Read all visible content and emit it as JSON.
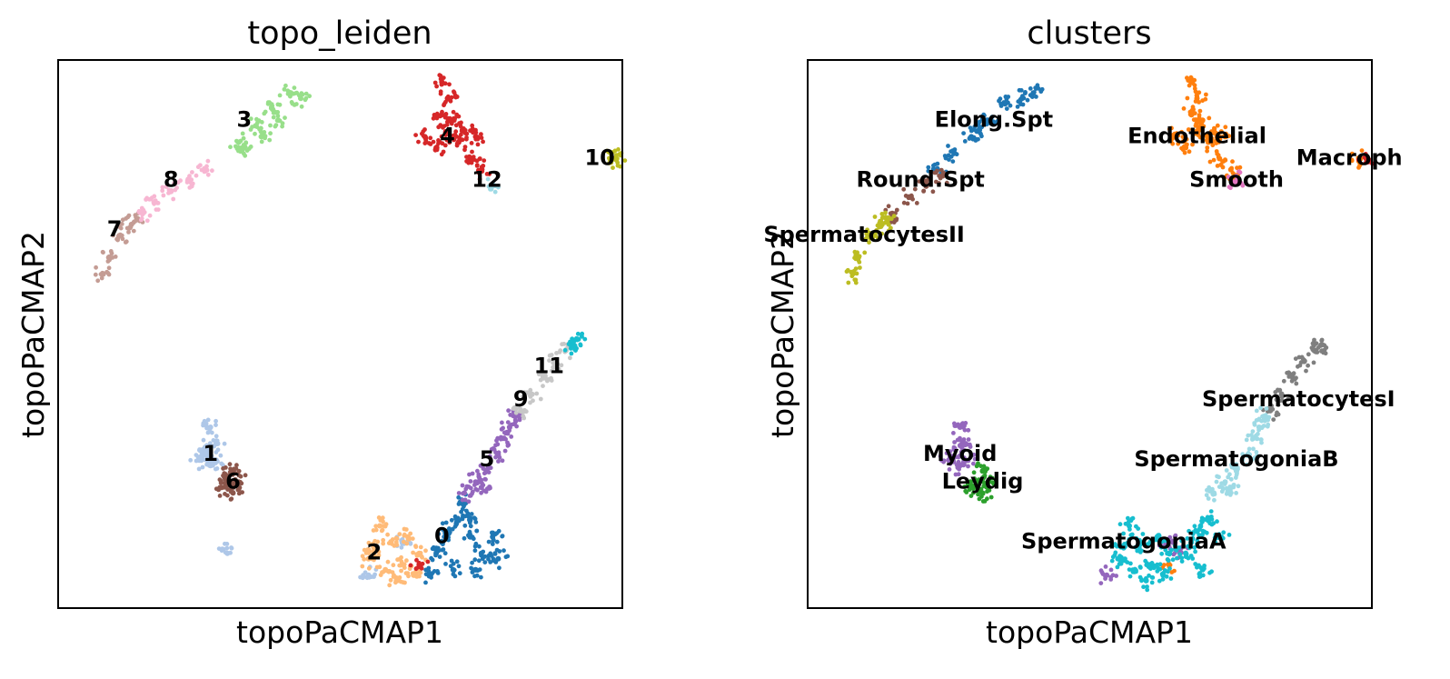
{
  "chart_data": [
    {
      "type": "scatter",
      "title": "topo_leiden",
      "xlabel": "topoPaCMAP1",
      "ylabel": "topoPaCMAP2",
      "xlim": [
        0,
        100
      ],
      "ylim": [
        0,
        100
      ],
      "grid": false,
      "legend": "on data",
      "series": [
        {
          "name": "0",
          "color": "#1f77b4",
          "points": [
            [
              67,
              10
            ],
            [
              69,
              14
            ],
            [
              71,
              16
            ],
            [
              73,
              13
            ],
            [
              75,
              10
            ],
            [
              77,
              13
            ],
            [
              72,
              19
            ],
            [
              70,
              7
            ],
            [
              74,
              7
            ],
            [
              78,
              9
            ],
            [
              66,
              6
            ],
            [
              68,
              12
            ],
            [
              73,
              16
            ]
          ]
        },
        {
          "name": "1",
          "color": "#aec7e8",
          "points": [
            [
              26,
              29
            ],
            [
              27,
              26
            ],
            [
              28,
              30
            ],
            [
              25,
              27
            ],
            [
              27,
              33
            ],
            [
              28,
              27
            ],
            [
              26,
              28
            ],
            [
              30,
              10
            ],
            [
              55,
              6
            ],
            [
              61,
              12
            ]
          ]
        },
        {
          "name": "2",
          "color": "#ffbb78",
          "points": [
            [
              56,
              11
            ],
            [
              59,
              12
            ],
            [
              62,
              13
            ],
            [
              55,
              9
            ],
            [
              58,
              7
            ],
            [
              61,
              8
            ],
            [
              64,
              10
            ],
            [
              57,
              15
            ],
            [
              63,
              6
            ],
            [
              60,
              5
            ]
          ]
        },
        {
          "name": "3",
          "color": "#98df8a",
          "points": [
            [
              32,
              85
            ],
            [
              35,
              88
            ],
            [
              38,
              91
            ],
            [
              41,
              94
            ],
            [
              43,
              93
            ],
            [
              39,
              89
            ],
            [
              36,
              86
            ],
            [
              33,
              84
            ]
          ]
        },
        {
          "name": "4",
          "color": "#d62728",
          "points": [
            [
              68,
              90
            ],
            [
              69,
              87
            ],
            [
              70,
              89
            ],
            [
              71,
              85
            ],
            [
              72,
              87
            ],
            [
              73,
              82
            ],
            [
              74,
              86
            ],
            [
              75,
              80
            ],
            [
              69,
              93
            ],
            [
              68,
              96
            ],
            [
              65,
              86
            ],
            [
              67,
              84
            ],
            [
              64,
              8
            ]
          ]
        },
        {
          "name": "5",
          "color": "#9467bd",
          "points": [
            [
              72,
              21
            ],
            [
              74,
              23
            ],
            [
              76,
              25
            ],
            [
              78,
              28
            ],
            [
              79,
              31
            ],
            [
              80,
              33
            ],
            [
              81,
              35
            ],
            [
              75,
              22
            ]
          ]
        },
        {
          "name": "6",
          "color": "#8c564b",
          "points": [
            [
              30,
              23
            ],
            [
              31,
              25
            ],
            [
              32,
              23
            ],
            [
              29,
              22
            ],
            [
              31,
              21
            ],
            [
              30,
              24
            ]
          ]
        },
        {
          "name": "7",
          "color": "#c49c94",
          "points": [
            [
              11,
              68
            ],
            [
              13,
              70
            ],
            [
              9,
              64
            ],
            [
              8,
              61
            ],
            [
              14,
              71
            ]
          ]
        },
        {
          "name": "8",
          "color": "#f7b6d2",
          "points": [
            [
              17,
              74
            ],
            [
              20,
              76
            ],
            [
              23,
              78
            ],
            [
              26,
              80
            ],
            [
              15,
              72
            ]
          ]
        },
        {
          "name": "9",
          "color": "#c7c7c7",
          "points": [
            [
              82,
              36
            ],
            [
              84,
              39
            ],
            [
              86,
              42
            ],
            [
              88,
              45
            ],
            [
              90,
              47
            ]
          ]
        },
        {
          "name": "10",
          "color": "#bcbd22",
          "points": [
            [
              98,
              82
            ],
            [
              99,
              82
            ]
          ]
        },
        {
          "name": "11",
          "color": "#17becf",
          "points": [
            [
              91,
              48
            ],
            [
              92,
              49
            ]
          ]
        },
        {
          "name": "12",
          "color": "#9edae5",
          "points": [
            [
              77,
              77
            ]
          ]
        }
      ],
      "labels": [
        {
          "text": "0",
          "x": 68,
          "y": 13
        },
        {
          "text": "1",
          "x": 27,
          "y": 28
        },
        {
          "text": "2",
          "x": 56,
          "y": 10
        },
        {
          "text": "3",
          "x": 33,
          "y": 89
        },
        {
          "text": "4",
          "x": 69,
          "y": 86
        },
        {
          "text": "5",
          "x": 76,
          "y": 27
        },
        {
          "text": "6",
          "x": 31,
          "y": 23
        },
        {
          "text": "7",
          "x": 10,
          "y": 69
        },
        {
          "text": "8",
          "x": 20,
          "y": 78
        },
        {
          "text": "9",
          "x": 82,
          "y": 38
        },
        {
          "text": "10",
          "x": 96,
          "y": 82
        },
        {
          "text": "11",
          "x": 87,
          "y": 44
        },
        {
          "text": "12",
          "x": 76,
          "y": 78
        }
      ]
    },
    {
      "type": "scatter",
      "title": "clusters",
      "xlabel": "topoPaCMAP1",
      "ylabel": "topoPaCMAP2",
      "xlim": [
        0,
        100
      ],
      "ylim": [
        0,
        100
      ],
      "grid": false,
      "legend": "on data",
      "series": [
        {
          "name": "Elong.Spt",
          "color": "#1f77b4",
          "points": [
            [
              23,
              80
            ],
            [
              26,
              83
            ],
            [
              29,
              86
            ],
            [
              32,
              89
            ],
            [
              35,
              92
            ],
            [
              38,
              93
            ],
            [
              40,
              94
            ],
            [
              30,
              87
            ]
          ]
        },
        {
          "name": "Endothelial",
          "color": "#ff7f0e",
          "points": [
            [
              68,
              90
            ],
            [
              69,
              87
            ],
            [
              70,
              89
            ],
            [
              71,
              85
            ],
            [
              72,
              87
            ],
            [
              73,
              82
            ],
            [
              74,
              86
            ],
            [
              75,
              80
            ],
            [
              69,
              93
            ],
            [
              68,
              96
            ],
            [
              65,
              86
            ],
            [
              67,
              84
            ],
            [
              98,
              82
            ],
            [
              64,
              8
            ]
          ]
        },
        {
          "name": "Leydig",
          "color": "#2ca02c",
          "points": [
            [
              30,
              23
            ],
            [
              31,
              25
            ],
            [
              32,
              23
            ],
            [
              29,
              22
            ],
            [
              31,
              21
            ]
          ]
        },
        {
          "name": "Macroph",
          "color": "#d62728",
          "points": [
            [
              99,
              82
            ]
          ]
        },
        {
          "name": "Myoid",
          "color": "#9467bd",
          "points": [
            [
              26,
              29
            ],
            [
              27,
              26
            ],
            [
              28,
              30
            ],
            [
              25,
              27
            ],
            [
              27,
              33
            ],
            [
              28,
              27
            ],
            [
              64,
              12
            ],
            [
              66,
              10
            ],
            [
              53,
              6
            ]
          ]
        },
        {
          "name": "Round.Spt",
          "color": "#8c564b",
          "points": [
            [
              15,
              72
            ],
            [
              18,
              75
            ],
            [
              21,
              77
            ],
            [
              24,
              79
            ]
          ]
        },
        {
          "name": "Smooth",
          "color": "#e377c2",
          "points": [
            [
              76,
              78
            ]
          ]
        },
        {
          "name": "SpermatocytesI",
          "color": "#7f7f7f",
          "points": [
            [
              82,
              36
            ],
            [
              84,
              39
            ],
            [
              86,
              42
            ],
            [
              88,
              45
            ],
            [
              90,
              47
            ],
            [
              91,
              48
            ]
          ]
        },
        {
          "name": "SpermatocytesII",
          "color": "#bcbd22",
          "points": [
            [
              8,
              61
            ],
            [
              9,
              64
            ],
            [
              11,
              68
            ],
            [
              13,
              70
            ],
            [
              14,
              71
            ]
          ]
        },
        {
          "name": "SpermatogoniaA",
          "color": "#17becf",
          "points": [
            [
              56,
              11
            ],
            [
              59,
              12
            ],
            [
              62,
              13
            ],
            [
              55,
              9
            ],
            [
              58,
              7
            ],
            [
              61,
              8
            ],
            [
              64,
              10
            ],
            [
              57,
              15
            ],
            [
              63,
              6
            ],
            [
              60,
              5
            ],
            [
              67,
              10
            ],
            [
              69,
              14
            ],
            [
              71,
              16
            ],
            [
              73,
              13
            ],
            [
              70,
              7
            ],
            [
              68,
              12
            ]
          ]
        },
        {
          "name": "SpermatogoniaB",
          "color": "#9edae5",
          "points": [
            [
              72,
              21
            ],
            [
              74,
              23
            ],
            [
              76,
              25
            ],
            [
              78,
              28
            ],
            [
              79,
              31
            ],
            [
              80,
              33
            ],
            [
              81,
              35
            ],
            [
              75,
              22
            ]
          ]
        }
      ],
      "labels": [
        {
          "text": "Elong.Spt",
          "x": 33,
          "y": 89
        },
        {
          "text": "Endothelial",
          "x": 69,
          "y": 86
        },
        {
          "text": "Macroph",
          "x": 96,
          "y": 82
        },
        {
          "text": "Round.Spt",
          "x": 20,
          "y": 78
        },
        {
          "text": "Smooth",
          "x": 76,
          "y": 78
        },
        {
          "text": "SpermatocytesII",
          "x": 10,
          "y": 68
        },
        {
          "text": "SpermatocytesI",
          "x": 87,
          "y": 38
        },
        {
          "text": "SpermatogoniaB",
          "x": 76,
          "y": 27
        },
        {
          "text": "Myoid",
          "x": 27,
          "y": 28
        },
        {
          "text": "Leydig",
          "x": 31,
          "y": 23
        },
        {
          "text": "SpermatogoniaA",
          "x": 56,
          "y": 12
        }
      ]
    }
  ]
}
